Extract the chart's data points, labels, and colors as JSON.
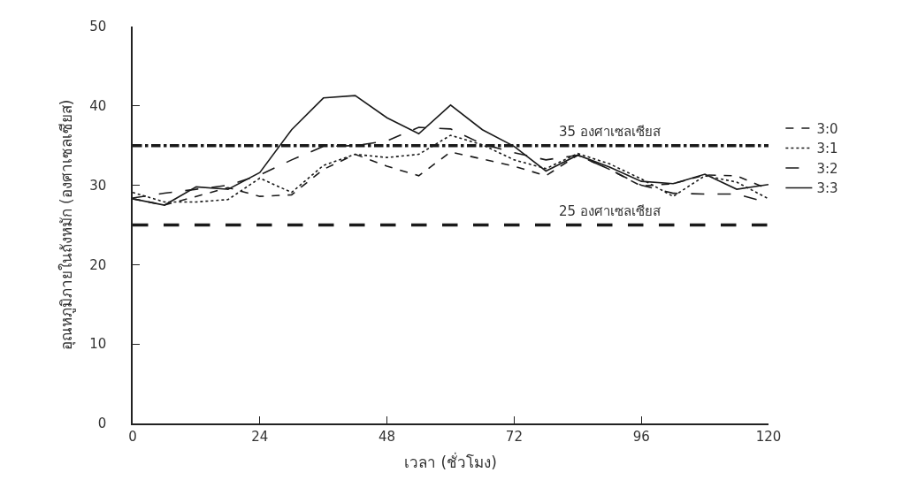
{
  "chart_data": {
    "type": "line",
    "xlabel": "เวลา (ชั่วโมง)",
    "ylabel": "อุณหภูมิภายในถังหมัก (องศาเซลเซียส)",
    "x": [
      0,
      6,
      12,
      18,
      24,
      30,
      36,
      42,
      48,
      54,
      60,
      66,
      72,
      78,
      84,
      90,
      96,
      102,
      108,
      114,
      120
    ],
    "series": [
      {
        "name": "3:0",
        "color": "#1a1a1a",
        "line_style": "dashed",
        "values": [
          28.3,
          27.5,
          28.6,
          29.7,
          28.6,
          28.8,
          32.0,
          33.9,
          32.4,
          31.2,
          34.2,
          33.3,
          32.4,
          31.2,
          33.8,
          32.0,
          29.9,
          30.2,
          31.3,
          31.2,
          29.5
        ]
      },
      {
        "name": "3:1",
        "color": "#1a1a1a",
        "line_style": "dotted",
        "values": [
          29.1,
          27.9,
          27.9,
          28.2,
          30.9,
          29.1,
          32.5,
          33.9,
          33.5,
          33.9,
          36.3,
          35.1,
          33.2,
          32.1,
          34.0,
          32.7,
          30.8,
          28.6,
          31.2,
          30.4,
          28.3
        ]
      },
      {
        "name": "3:2",
        "color": "#1a1a1a",
        "line_style": "longdash",
        "values": [
          28.4,
          29.0,
          29.5,
          30.0,
          31.3,
          33.2,
          34.9,
          35.0,
          35.6,
          37.3,
          37.1,
          35.2,
          34.1,
          33.2,
          33.8,
          32.0,
          30.0,
          29.0,
          28.9,
          28.9,
          27.8
        ]
      },
      {
        "name": "3:3",
        "color": "#1a1a1a",
        "line_style": "solid",
        "values": [
          28.3,
          27.5,
          29.8,
          29.5,
          31.6,
          37.0,
          41.0,
          41.3,
          38.5,
          36.5,
          40.1,
          37.0,
          34.9,
          31.8,
          33.8,
          32.3,
          30.5,
          30.2,
          31.4,
          29.5,
          30.1
        ]
      }
    ],
    "ref_lines": [
      {
        "axis": "y",
        "value": 35,
        "label": "35 องศาเซลเซียส",
        "color": "#1a1a1a",
        "line_style": "dashdot"
      },
      {
        "axis": "y",
        "value": 25,
        "label": "25 องศาเซลเซียส",
        "color": "#1a1a1a",
        "line_style": "longdash"
      }
    ],
    "xlim": [
      0,
      120
    ],
    "xticks": [
      0,
      24,
      48,
      72,
      96,
      120
    ],
    "ylim": [
      0,
      50
    ],
    "yticks": [
      0,
      10,
      20,
      30,
      40,
      50
    ],
    "legend": "right",
    "marker": "none"
  }
}
